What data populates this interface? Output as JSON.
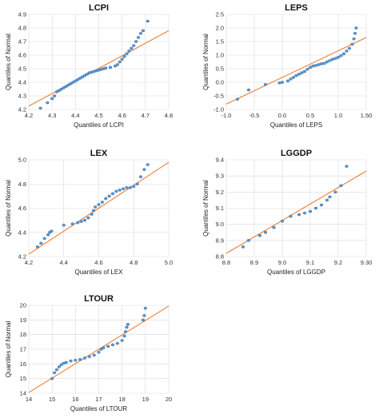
{
  "chart_data": [
    {
      "type": "scatter",
      "title": "LCPI",
      "xlabel": "Quantiles of LCPI",
      "ylabel": "Quantiles of Normal",
      "xlim": [
        4.2,
        4.8
      ],
      "ylim": [
        4.2,
        4.9
      ],
      "xticks": [
        "4.2",
        "4.3",
        "4.4",
        "4.5",
        "4.6",
        "4.7",
        "4.8"
      ],
      "yticks": [
        "4.2",
        "4.3",
        "4.4",
        "4.5",
        "4.6",
        "4.7",
        "4.8",
        "4.9"
      ],
      "grid": true,
      "fit_line": [
        [
          4.2,
          4.225
        ],
        [
          4.8,
          4.78
        ]
      ],
      "points": [
        [
          4.25,
          4.21
        ],
        [
          4.28,
          4.25
        ],
        [
          4.3,
          4.28
        ],
        [
          4.31,
          4.3
        ],
        [
          4.32,
          4.33
        ],
        [
          4.33,
          4.34
        ],
        [
          4.34,
          4.35
        ],
        [
          4.35,
          4.36
        ],
        [
          4.36,
          4.37
        ],
        [
          4.37,
          4.38
        ],
        [
          4.38,
          4.39
        ],
        [
          4.39,
          4.4
        ],
        [
          4.4,
          4.41
        ],
        [
          4.41,
          4.42
        ],
        [
          4.42,
          4.43
        ],
        [
          4.43,
          4.44
        ],
        [
          4.44,
          4.45
        ],
        [
          4.45,
          4.46
        ],
        [
          4.46,
          4.47
        ],
        [
          4.47,
          4.475
        ],
        [
          4.48,
          4.48
        ],
        [
          4.49,
          4.485
        ],
        [
          4.5,
          4.49
        ],
        [
          4.51,
          4.495
        ],
        [
          4.52,
          4.5
        ],
        [
          4.53,
          4.505
        ],
        [
          4.55,
          4.51
        ],
        [
          4.57,
          4.52
        ],
        [
          4.58,
          4.53
        ],
        [
          4.59,
          4.55
        ],
        [
          4.6,
          4.57
        ],
        [
          4.61,
          4.59
        ],
        [
          4.62,
          4.61
        ],
        [
          4.63,
          4.63
        ],
        [
          4.64,
          4.65
        ],
        [
          4.65,
          4.67
        ],
        [
          4.66,
          4.7
        ],
        [
          4.67,
          4.73
        ],
        [
          4.68,
          4.76
        ],
        [
          4.69,
          4.78
        ],
        [
          4.71,
          4.85
        ]
      ]
    },
    {
      "type": "scatter",
      "title": "LEPS",
      "xlabel": "Quantiles of LEPS",
      "ylabel": "Quantiles of Normal",
      "xlim": [
        -1.0,
        1.5
      ],
      "ylim": [
        -1.0,
        2.5
      ],
      "xticks": [
        "-1.0",
        "-0.5",
        "0.0",
        "0.5",
        "1.0",
        "1.50"
      ],
      "yticks": [
        "-1.0",
        "-0.5",
        "0.0",
        "0.5",
        "1.0",
        "1.5",
        "2.0",
        "2.5"
      ],
      "grid": true,
      "fit_line": [
        [
          -1.0,
          -0.8
        ],
        [
          1.5,
          1.65
        ]
      ],
      "points": [
        [
          -0.8,
          -0.62
        ],
        [
          -0.6,
          -0.28
        ],
        [
          -0.3,
          -0.08
        ],
        [
          -0.05,
          -0.02
        ],
        [
          0.0,
          0.0
        ],
        [
          0.1,
          0.05
        ],
        [
          0.15,
          0.12
        ],
        [
          0.2,
          0.18
        ],
        [
          0.25,
          0.25
        ],
        [
          0.3,
          0.3
        ],
        [
          0.35,
          0.35
        ],
        [
          0.4,
          0.4
        ],
        [
          0.45,
          0.48
        ],
        [
          0.5,
          0.55
        ],
        [
          0.55,
          0.6
        ],
        [
          0.6,
          0.62
        ],
        [
          0.65,
          0.65
        ],
        [
          0.7,
          0.68
        ],
        [
          0.75,
          0.7
        ],
        [
          0.8,
          0.75
        ],
        [
          0.85,
          0.8
        ],
        [
          0.9,
          0.85
        ],
        [
          0.95,
          0.88
        ],
        [
          1.0,
          0.92
        ],
        [
          1.05,
          0.98
        ],
        [
          1.1,
          1.05
        ],
        [
          1.15,
          1.15
        ],
        [
          1.2,
          1.25
        ],
        [
          1.25,
          1.4
        ],
        [
          1.28,
          1.6
        ],
        [
          1.3,
          1.8
        ],
        [
          1.32,
          2.0
        ]
      ]
    },
    {
      "type": "scatter",
      "title": "LEX",
      "xlabel": "Quantiles of LEX",
      "ylabel": "Quantiles of Normal",
      "xlim": [
        4.2,
        5.0
      ],
      "ylim": [
        4.2,
        5.0
      ],
      "xticks": [
        "4.2",
        "4.4",
        "4.6",
        "4.8",
        "5.0"
      ],
      "yticks": [
        "4.2",
        "4.4",
        "4.6",
        "4.8",
        "5.0"
      ],
      "grid": true,
      "fit_line": [
        [
          4.2,
          4.22
        ],
        [
          5.0,
          4.98
        ]
      ],
      "points": [
        [
          4.25,
          4.28
        ],
        [
          4.27,
          4.31
        ],
        [
          4.29,
          4.35
        ],
        [
          4.31,
          4.38
        ],
        [
          4.32,
          4.4
        ],
        [
          4.33,
          4.41
        ],
        [
          4.4,
          4.46
        ],
        [
          4.45,
          4.47
        ],
        [
          4.48,
          4.48
        ],
        [
          4.5,
          4.49
        ],
        [
          4.52,
          4.5
        ],
        [
          4.54,
          4.52
        ],
        [
          4.56,
          4.55
        ],
        [
          4.57,
          4.58
        ],
        [
          4.58,
          4.61
        ],
        [
          4.6,
          4.63
        ],
        [
          4.62,
          4.65
        ],
        [
          4.64,
          4.68
        ],
        [
          4.66,
          4.7
        ],
        [
          4.68,
          4.72
        ],
        [
          4.7,
          4.74
        ],
        [
          4.72,
          4.75
        ],
        [
          4.74,
          4.76
        ],
        [
          4.76,
          4.77
        ],
        [
          4.78,
          4.77
        ],
        [
          4.8,
          4.78
        ],
        [
          4.82,
          4.8
        ],
        [
          4.84,
          4.86
        ],
        [
          4.86,
          4.92
        ],
        [
          4.88,
          4.96
        ]
      ]
    },
    {
      "type": "scatter",
      "title": "LGGDP",
      "xlabel": "Quantiles of LGGDP",
      "ylabel": "Quantiles of Normal",
      "xlim": [
        8.8,
        9.3
      ],
      "ylim": [
        8.8,
        9.4
      ],
      "xticks": [
        "8.8",
        "8.9",
        "9.0",
        "9.1",
        "9.2",
        "9.30"
      ],
      "yticks": [
        "8.8",
        "8.9",
        "9.0",
        "9.1",
        "9.2",
        "9.3",
        "9.4"
      ],
      "grid": true,
      "fit_line": [
        [
          8.8,
          8.82
        ],
        [
          9.3,
          9.33
        ]
      ],
      "points": [
        [
          8.86,
          8.86
        ],
        [
          8.88,
          8.9
        ],
        [
          8.92,
          8.93
        ],
        [
          8.94,
          8.95
        ],
        [
          8.97,
          8.98
        ],
        [
          9.0,
          9.02
        ],
        [
          9.03,
          9.05
        ],
        [
          9.06,
          9.06
        ],
        [
          9.08,
          9.07
        ],
        [
          9.1,
          9.08
        ],
        [
          9.12,
          9.1
        ],
        [
          9.14,
          9.12
        ],
        [
          9.16,
          9.15
        ],
        [
          9.17,
          9.17
        ],
        [
          9.19,
          9.2
        ],
        [
          9.21,
          9.24
        ],
        [
          9.23,
          9.36
        ]
      ]
    },
    {
      "type": "scatter",
      "title": "LTOUR",
      "xlabel": "Quantiles of LTOUR",
      "ylabel": "Quantiles of Normal",
      "xlim": [
        14,
        20
      ],
      "ylim": [
        14,
        20
      ],
      "xticks": [
        "14",
        "15",
        "16",
        "17",
        "18",
        "19",
        "20"
      ],
      "yticks": [
        "14",
        "15",
        "16",
        "17",
        "18",
        "19",
        "20"
      ],
      "grid": true,
      "fit_line": [
        [
          14,
          14.05
        ],
        [
          20,
          19.95
        ]
      ],
      "points": [
        [
          15.0,
          15.0
        ],
        [
          15.1,
          15.4
        ],
        [
          15.2,
          15.6
        ],
        [
          15.3,
          15.8
        ],
        [
          15.4,
          15.95
        ],
        [
          15.5,
          16.05
        ],
        [
          15.6,
          16.1
        ],
        [
          15.8,
          16.2
        ],
        [
          16.0,
          16.25
        ],
        [
          16.2,
          16.3
        ],
        [
          16.4,
          16.4
        ],
        [
          16.6,
          16.5
        ],
        [
          16.8,
          16.6
        ],
        [
          17.0,
          16.8
        ],
        [
          17.1,
          17.0
        ],
        [
          17.2,
          17.1
        ],
        [
          17.4,
          17.2
        ],
        [
          17.6,
          17.3
        ],
        [
          17.8,
          17.4
        ],
        [
          18.0,
          17.6
        ],
        [
          18.1,
          17.9
        ],
        [
          18.15,
          18.2
        ],
        [
          18.2,
          18.5
        ],
        [
          18.25,
          18.7
        ],
        [
          18.9,
          19.0
        ],
        [
          18.95,
          19.3
        ],
        [
          19.0,
          19.8
        ]
      ]
    }
  ]
}
